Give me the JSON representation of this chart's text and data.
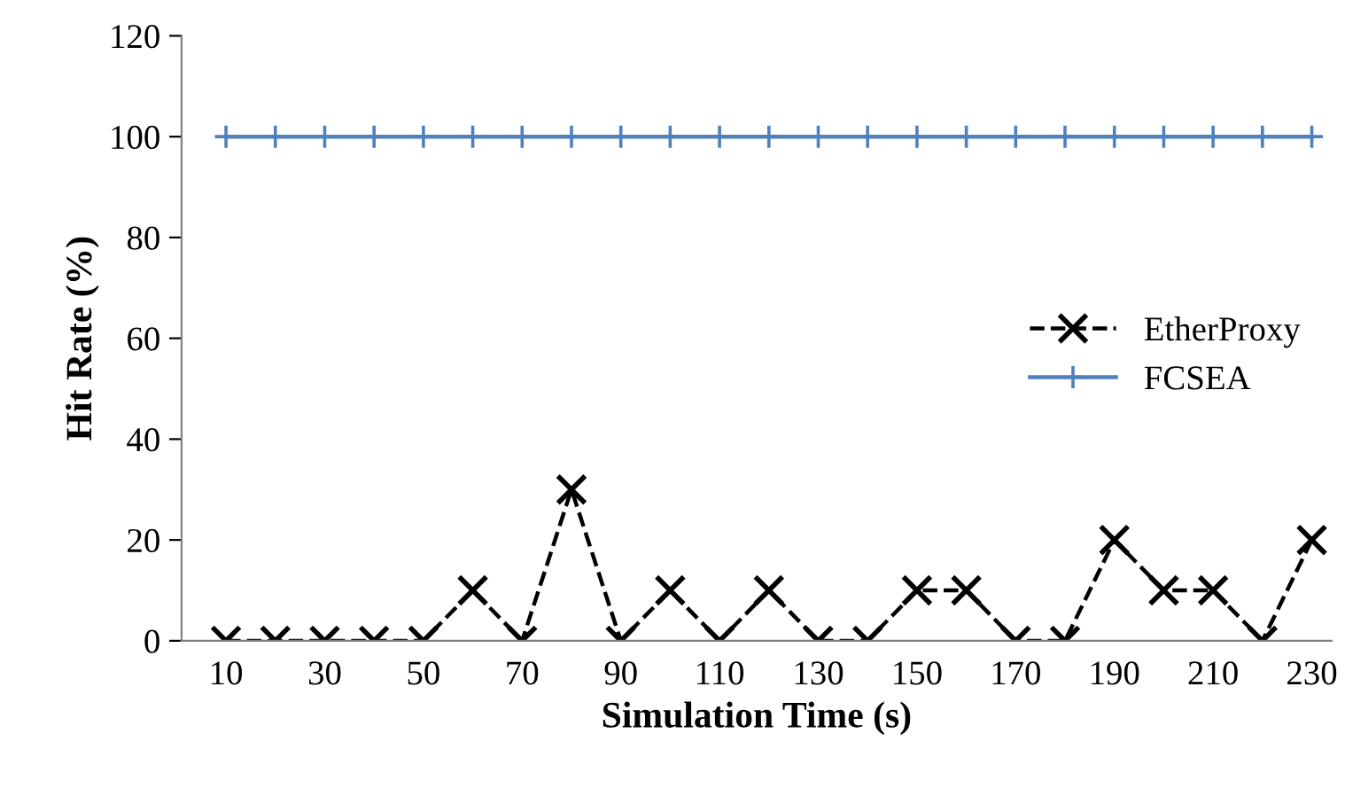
{
  "chart_data": {
    "type": "line",
    "xlabel": "Simulation Time (s)",
    "ylabel": "Hit Rate (%)",
    "categories": [
      "10",
      null,
      "30",
      null,
      "50",
      null,
      "70",
      null,
      "90",
      null,
      "110",
      null,
      "130",
      null,
      "150",
      null,
      "170",
      null,
      "190",
      null,
      "210",
      null,
      "230"
    ],
    "series": [
      {
        "name": "EtherProxy",
        "color": "#000000",
        "marker": "cross",
        "line_style": "dashed",
        "values": [
          0,
          0,
          0,
          0,
          0,
          10,
          0,
          30,
          0,
          10,
          0,
          10,
          0,
          0,
          10,
          10,
          0,
          0,
          20,
          10,
          10,
          0,
          20
        ]
      },
      {
        "name": "FCSEA",
        "color": "#4f81bd",
        "marker": "plus",
        "line_style": "solid",
        "values": [
          100,
          100,
          100,
          100,
          100,
          100,
          100,
          100,
          100,
          100,
          100,
          100,
          100,
          100,
          100,
          100,
          100,
          100,
          100,
          100,
          100,
          100,
          100
        ]
      }
    ],
    "ylim": [
      0,
      120
    ],
    "yticks": [
      0,
      20,
      40,
      60,
      80,
      100,
      120
    ],
    "grid": false,
    "legend": "right"
  }
}
